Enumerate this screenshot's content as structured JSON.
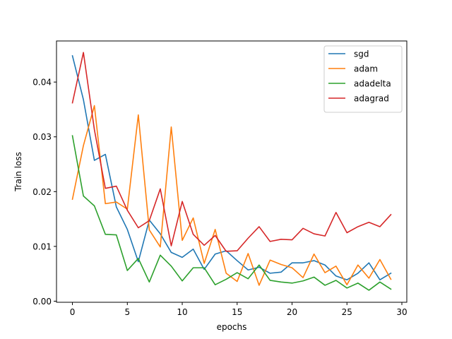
{
  "chart_data": {
    "type": "line",
    "title": "",
    "xlabel": "epochs",
    "ylabel": "Train loss",
    "xlim": [
      -1.45,
      30.45
    ],
    "ylim": [
      -0.0002,
      0.0475
    ],
    "xticks": [
      0,
      5,
      10,
      15,
      20,
      25,
      30
    ],
    "xtick_labels": [
      "0",
      "5",
      "10",
      "15",
      "20",
      "25",
      "30"
    ],
    "yticks": [
      0.0,
      0.01,
      0.02,
      0.03,
      0.04
    ],
    "ytick_labels": [
      "0.00",
      "0.01",
      "0.02",
      "0.03",
      "0.04"
    ],
    "grid": false,
    "legend_position": "top-right",
    "x": [
      0,
      1,
      2,
      3,
      4,
      5,
      6,
      7,
      8,
      9,
      10,
      11,
      12,
      13,
      14,
      15,
      16,
      17,
      18,
      19,
      20,
      21,
      22,
      23,
      24,
      25,
      26,
      27,
      28,
      29
    ],
    "series": [
      {
        "name": "sgd",
        "color": "#1f77b4",
        "values": [
          0.0448,
          0.0368,
          0.0257,
          0.0268,
          0.0172,
          0.0131,
          0.0072,
          0.0148,
          0.0123,
          0.0089,
          0.008,
          0.0095,
          0.0058,
          0.0086,
          0.0092,
          0.0074,
          0.0057,
          0.0062,
          0.0051,
          0.0053,
          0.007,
          0.007,
          0.0074,
          0.0066,
          0.0046,
          0.0039,
          0.0051,
          0.007,
          0.0039,
          0.0051
        ]
      },
      {
        "name": "adam",
        "color": "#ff7f0e",
        "values": [
          0.0186,
          0.0284,
          0.0357,
          0.0178,
          0.0181,
          0.0168,
          0.034,
          0.013,
          0.0099,
          0.0318,
          0.0111,
          0.0152,
          0.0069,
          0.0131,
          0.0051,
          0.0036,
          0.0087,
          0.0029,
          0.0075,
          0.0067,
          0.0061,
          0.0043,
          0.0086,
          0.0052,
          0.0064,
          0.003,
          0.0066,
          0.0042,
          0.0076,
          0.004
        ]
      },
      {
        "name": "adadelta",
        "color": "#2ca02c",
        "values": [
          0.0302,
          0.0192,
          0.0174,
          0.0122,
          0.0121,
          0.0056,
          0.0078,
          0.0035,
          0.0084,
          0.0064,
          0.0037,
          0.0061,
          0.0061,
          0.003,
          0.004,
          0.0052,
          0.0041,
          0.0066,
          0.0038,
          0.0035,
          0.0033,
          0.0037,
          0.0044,
          0.0029,
          0.0038,
          0.0024,
          0.0033,
          0.002,
          0.0035,
          0.0022
        ]
      },
      {
        "name": "adagrad",
        "color": "#d62728",
        "values": [
          0.0362,
          0.0454,
          0.0313,
          0.0206,
          0.021,
          0.0166,
          0.0134,
          0.0147,
          0.0205,
          0.0101,
          0.0182,
          0.0122,
          0.0102,
          0.012,
          0.0091,
          0.0092,
          0.0115,
          0.0136,
          0.0109,
          0.0113,
          0.0112,
          0.0133,
          0.0123,
          0.0119,
          0.0162,
          0.0125,
          0.0136,
          0.0144,
          0.0136,
          0.0158
        ]
      }
    ]
  }
}
